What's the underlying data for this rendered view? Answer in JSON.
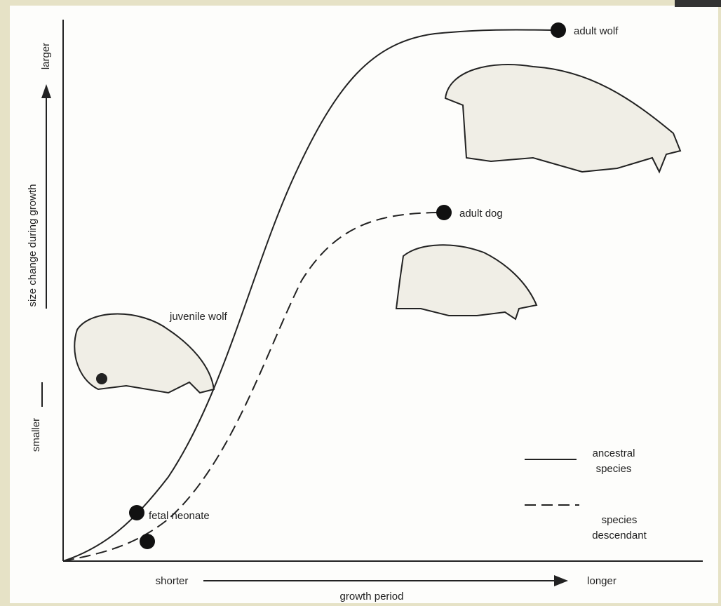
{
  "axes": {
    "y_label": "size change during growth",
    "y_low": "smaller",
    "y_high": "larger",
    "x_label": "growth period",
    "x_low": "shorter",
    "x_high": "longer"
  },
  "labels": {
    "adult_wolf": "adult wolf",
    "adult_dog": "adult dog",
    "juvenile_wolf": "juvenile wolf",
    "fetal_neonate": "fetal neonate"
  },
  "legend": [
    {
      "label": "ancestral species"
    },
    {
      "label": "species descendant"
    }
  ]
}
